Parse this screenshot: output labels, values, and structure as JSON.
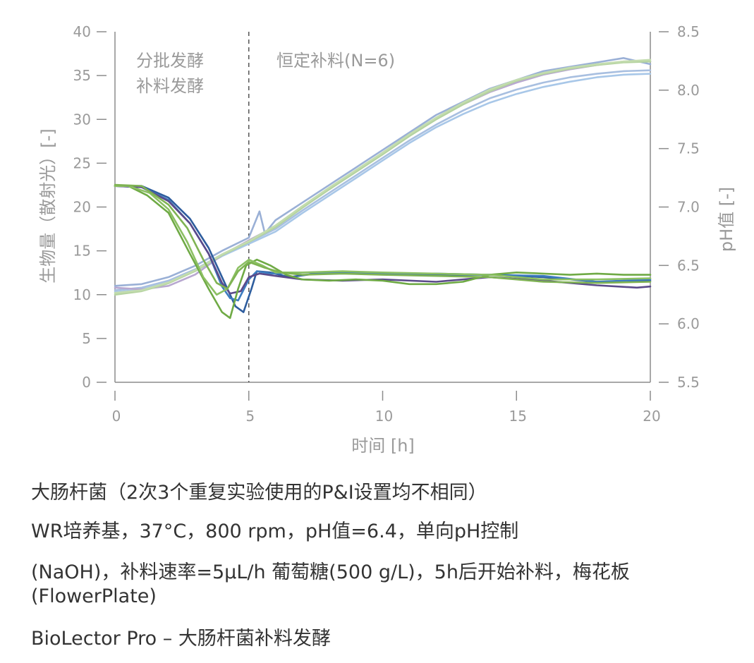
{
  "chart_data": {
    "type": "line",
    "xlabel": "时间 [h]",
    "ylabel": "生物量（散射光）[-]",
    "y2label": "pH值 [-]",
    "xlim": [
      0,
      20
    ],
    "ylim": [
      0,
      40
    ],
    "y2lim": [
      5.5,
      8.5
    ],
    "xticks": [
      "0",
      "5",
      "10",
      "15",
      "20"
    ],
    "yticks": [
      "0",
      "5",
      "10",
      "15",
      "20",
      "25",
      "30",
      "35",
      "40"
    ],
    "y2ticks": [
      "5.5",
      "6.0",
      "6.5",
      "7.0",
      "7.5",
      "8.0",
      "8.5"
    ],
    "grid": false,
    "annotations": [
      {
        "text": "分批发酵",
        "x": 0.8,
        "y": 36.5
      },
      {
        "text": "补料发酵",
        "x": 0.8,
        "y": 34.0
      },
      {
        "text": "恒定补料(N=6)",
        "x": 6.1,
        "y": 36.5
      }
    ],
    "vline": {
      "x": 5,
      "style": "dashed"
    },
    "series": [
      {
        "axis": "left",
        "color": "#9ab0d6",
        "points": [
          [
            0,
            11
          ],
          [
            1,
            11.2
          ],
          [
            2,
            12
          ],
          [
            3,
            13.3
          ],
          [
            4,
            15
          ],
          [
            5,
            16.5
          ],
          [
            5.4,
            19.5
          ],
          [
            5.6,
            17
          ],
          [
            6,
            18.5
          ],
          [
            7,
            20.5
          ],
          [
            8,
            22.5
          ],
          [
            9,
            24.5
          ],
          [
            10,
            26.5
          ],
          [
            11,
            28.5
          ],
          [
            12,
            30.5
          ],
          [
            13,
            32
          ],
          [
            14,
            33.5
          ],
          [
            15,
            34.5
          ],
          [
            16,
            35.5
          ],
          [
            17,
            36
          ],
          [
            18,
            36.5
          ],
          [
            19,
            37
          ],
          [
            20,
            36.3
          ]
        ]
      },
      {
        "axis": "left",
        "color": "#a8bfe0",
        "points": [
          [
            0,
            10.5
          ],
          [
            1,
            10.8
          ],
          [
            2,
            11.6
          ],
          [
            3,
            12.9
          ],
          [
            4,
            14.6
          ],
          [
            5,
            16
          ],
          [
            6,
            17.5
          ],
          [
            7,
            19.6
          ],
          [
            8,
            21.6
          ],
          [
            9,
            23.6
          ],
          [
            10,
            25.6
          ],
          [
            11,
            27.6
          ],
          [
            12,
            29.4
          ],
          [
            13,
            31
          ],
          [
            14,
            32.4
          ],
          [
            15,
            33.4
          ],
          [
            16,
            34.2
          ],
          [
            17,
            34.8
          ],
          [
            18,
            35.2
          ],
          [
            19,
            35.5
          ],
          [
            20,
            35.6
          ]
        ]
      },
      {
        "axis": "left",
        "color": "#a8c7e8",
        "points": [
          [
            0,
            10.3
          ],
          [
            1,
            10.6
          ],
          [
            2,
            11.4
          ],
          [
            3,
            12.7
          ],
          [
            4,
            14.4
          ],
          [
            5,
            15.8
          ],
          [
            6,
            17.2
          ],
          [
            7,
            19.3
          ],
          [
            8,
            21.3
          ],
          [
            9,
            23.3
          ],
          [
            10,
            25.3
          ],
          [
            11,
            27.3
          ],
          [
            12,
            29.1
          ],
          [
            13,
            30.6
          ],
          [
            14,
            31.9
          ],
          [
            15,
            32.9
          ],
          [
            16,
            33.7
          ],
          [
            17,
            34.3
          ],
          [
            18,
            34.8
          ],
          [
            19,
            35.1
          ],
          [
            20,
            35.2
          ]
        ]
      },
      {
        "axis": "left",
        "color": "#b8a8d0",
        "points": [
          [
            0,
            10.8
          ],
          [
            1,
            10.6
          ],
          [
            2,
            11
          ],
          [
            3,
            12.3
          ],
          [
            4,
            14.5
          ],
          [
            5,
            16.2
          ],
          [
            6,
            17.8
          ],
          [
            7,
            20
          ],
          [
            8,
            22
          ],
          [
            9,
            24.1
          ],
          [
            10,
            26.2
          ],
          [
            11,
            28.2
          ],
          [
            12,
            30.1
          ],
          [
            13,
            31.7
          ],
          [
            14,
            33.1
          ],
          [
            15,
            34.2
          ],
          [
            16,
            35.1
          ],
          [
            17,
            35.7
          ],
          [
            18,
            36.2
          ],
          [
            19,
            36.6
          ],
          [
            20,
            36.6
          ]
        ]
      },
      {
        "axis": "left",
        "color": "#b5d3a0",
        "points": [
          [
            0,
            10
          ],
          [
            1,
            10.4
          ],
          [
            2,
            11.3
          ],
          [
            3,
            12.7
          ],
          [
            4,
            14.5
          ],
          [
            5,
            16
          ],
          [
            6,
            17.7
          ],
          [
            7,
            19.9
          ],
          [
            8,
            22
          ],
          [
            9,
            24
          ],
          [
            10,
            26
          ],
          [
            11,
            28.1
          ],
          [
            12,
            30
          ],
          [
            13,
            31.7
          ],
          [
            14,
            33.2
          ],
          [
            15,
            34.4
          ],
          [
            16,
            35.2
          ],
          [
            17,
            35.8
          ],
          [
            18,
            36.2
          ],
          [
            19,
            36.5
          ],
          [
            20,
            36.6
          ]
        ]
      },
      {
        "axis": "left",
        "color": "#c3dcae",
        "points": [
          [
            0,
            10.2
          ],
          [
            1,
            10.5
          ],
          [
            2,
            11.4
          ],
          [
            3,
            12.8
          ],
          [
            4,
            14.6
          ],
          [
            5,
            16.1
          ],
          [
            6,
            17.9
          ],
          [
            7,
            20.1
          ],
          [
            8,
            22.2
          ],
          [
            9,
            24.2
          ],
          [
            10,
            26.2
          ],
          [
            11,
            28.3
          ],
          [
            12,
            30.2
          ],
          [
            13,
            31.9
          ],
          [
            14,
            33.4
          ],
          [
            15,
            34.5
          ],
          [
            16,
            35.3
          ],
          [
            17,
            35.9
          ],
          [
            18,
            36.3
          ],
          [
            19,
            36.6
          ],
          [
            20,
            36.8
          ]
        ]
      },
      {
        "axis": "right",
        "color": "#2e5d9e",
        "points": [
          [
            0,
            7.18
          ],
          [
            0.6,
            7.18
          ],
          [
            1,
            7.18
          ],
          [
            2,
            7.08
          ],
          [
            2.8,
            6.9
          ],
          [
            3.5,
            6.65
          ],
          [
            4,
            6.4
          ],
          [
            4.5,
            6.15
          ],
          [
            4.8,
            6.1
          ],
          [
            5.1,
            6.3
          ],
          [
            5.3,
            6.45
          ],
          [
            5.8,
            6.44
          ],
          [
            6.5,
            6.4
          ],
          [
            7.5,
            6.43
          ],
          [
            8.5,
            6.44
          ],
          [
            10,
            6.43
          ],
          [
            12,
            6.42
          ],
          [
            14,
            6.42
          ],
          [
            16,
            6.4
          ],
          [
            18,
            6.36
          ],
          [
            20,
            6.37
          ]
        ]
      },
      {
        "axis": "right",
        "color": "#3d7cc0",
        "points": [
          [
            0,
            7.18
          ],
          [
            1,
            7.17
          ],
          [
            2,
            7.06
          ],
          [
            2.8,
            6.86
          ],
          [
            3.5,
            6.6
          ],
          [
            4,
            6.32
          ],
          [
            4.3,
            6.22
          ],
          [
            4.6,
            6.2
          ],
          [
            5,
            6.38
          ],
          [
            5.3,
            6.45
          ],
          [
            5.8,
            6.43
          ],
          [
            7,
            6.44
          ],
          [
            8.5,
            6.44
          ],
          [
            10,
            6.43
          ],
          [
            12,
            6.43
          ],
          [
            14,
            6.42
          ],
          [
            16,
            6.41
          ],
          [
            18,
            6.36
          ],
          [
            20,
            6.38
          ]
        ]
      },
      {
        "axis": "right",
        "color": "#5b4a8a",
        "points": [
          [
            0,
            7.18
          ],
          [
            1,
            7.17
          ],
          [
            2,
            7.05
          ],
          [
            2.8,
            6.86
          ],
          [
            3.5,
            6.6
          ],
          [
            4,
            6.35
          ],
          [
            4.3,
            6.26
          ],
          [
            4.7,
            6.28
          ],
          [
            5,
            6.4
          ],
          [
            5.4,
            6.43
          ],
          [
            6,
            6.41
          ],
          [
            7,
            6.38
          ],
          [
            8.5,
            6.37
          ],
          [
            10,
            6.38
          ],
          [
            12,
            6.36
          ],
          [
            14,
            6.4
          ],
          [
            16,
            6.37
          ],
          [
            18,
            6.33
          ],
          [
            19.5,
            6.31
          ],
          [
            20,
            6.32
          ]
        ]
      },
      {
        "axis": "right",
        "color": "#6faa45",
        "points": [
          [
            0,
            7.18
          ],
          [
            0.5,
            7.18
          ],
          [
            1.2,
            7.1
          ],
          [
            2,
            6.95
          ],
          [
            2.8,
            6.6
          ],
          [
            3.5,
            6.3
          ],
          [
            4,
            6.1
          ],
          [
            4.3,
            6.05
          ],
          [
            4.6,
            6.3
          ],
          [
            4.9,
            6.5
          ],
          [
            5.3,
            6.55
          ],
          [
            5.8,
            6.5
          ],
          [
            6.4,
            6.42
          ],
          [
            7,
            6.38
          ],
          [
            8,
            6.37
          ],
          [
            9,
            6.38
          ],
          [
            10,
            6.37
          ],
          [
            11,
            6.34
          ],
          [
            12,
            6.34
          ],
          [
            13,
            6.36
          ],
          [
            14,
            6.42
          ],
          [
            15,
            6.44
          ],
          [
            16,
            6.43
          ],
          [
            17,
            6.42
          ],
          [
            18,
            6.43
          ],
          [
            19,
            6.42
          ],
          [
            20,
            6.42
          ]
        ]
      },
      {
        "axis": "right",
        "color": "#8cc063",
        "points": [
          [
            0,
            7.18
          ],
          [
            0.5,
            7.18
          ],
          [
            1.3,
            7.12
          ],
          [
            2,
            6.98
          ],
          [
            2.7,
            6.7
          ],
          [
            3.3,
            6.4
          ],
          [
            3.8,
            6.25
          ],
          [
            4.2,
            6.3
          ],
          [
            4.6,
            6.48
          ],
          [
            5,
            6.55
          ],
          [
            5.5,
            6.5
          ],
          [
            6,
            6.44
          ],
          [
            7,
            6.44
          ],
          [
            8.5,
            6.45
          ],
          [
            10,
            6.44
          ],
          [
            12,
            6.43
          ],
          [
            14,
            6.42
          ],
          [
            16,
            6.38
          ],
          [
            18,
            6.38
          ],
          [
            20,
            6.39
          ]
        ]
      },
      {
        "axis": "right",
        "color": "#7fb353",
        "points": [
          [
            0,
            7.19
          ],
          [
            1,
            7.18
          ],
          [
            2,
            7.02
          ],
          [
            2.7,
            6.82
          ],
          [
            3.3,
            6.55
          ],
          [
            3.8,
            6.35
          ],
          [
            4.2,
            6.3
          ],
          [
            4.6,
            6.45
          ],
          [
            5,
            6.53
          ],
          [
            5.6,
            6.48
          ],
          [
            6.2,
            6.44
          ],
          [
            7,
            6.42
          ],
          [
            8.5,
            6.43
          ],
          [
            10,
            6.42
          ],
          [
            12,
            6.41
          ],
          [
            14,
            6.4
          ],
          [
            16,
            6.36
          ],
          [
            18,
            6.35
          ],
          [
            20,
            6.36
          ]
        ]
      }
    ]
  },
  "caption": {
    "line1": "大肠杆菌（2次3个重复实验使用的P&I设置均不相同）",
    "line2": "WR培养基，37°C，800 rpm，pH值=6.4，单向pH控制",
    "line3": "(NaOH)，补料速率=5μL/h 葡萄糖(500 g/L)，5h后开始补料，梅花板 (FlowerPlate)",
    "line4": "BioLector Pro – 大肠杆菌补料发酵"
  }
}
